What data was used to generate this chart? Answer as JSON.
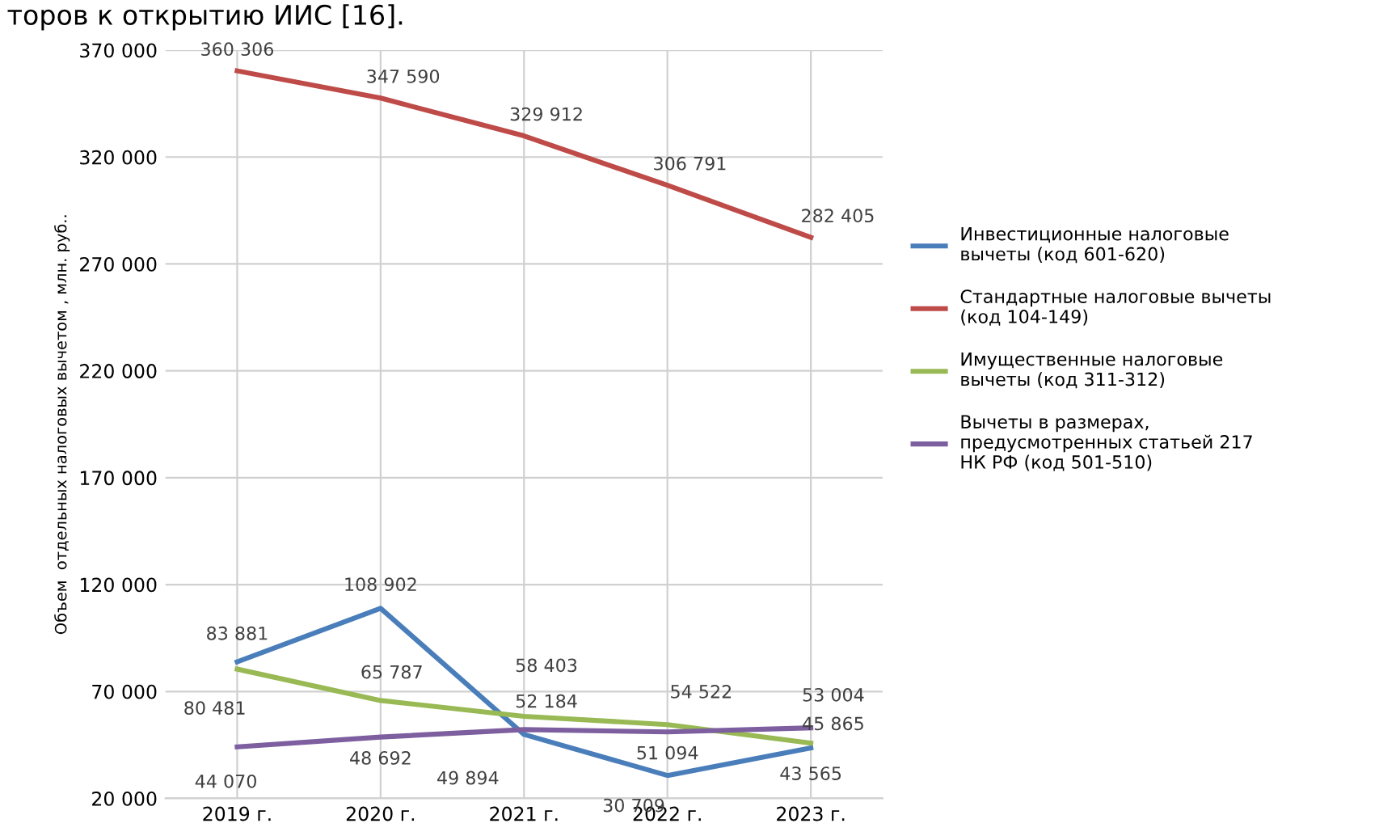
{
  "chart_data": {
    "type": "line",
    "ylabel": "Объем  отдельных налоговых вычетом , млн. руб..",
    "categories": [
      "2019 г.",
      "2020 г.",
      "2021 г.",
      "2022 г.",
      "2023 г."
    ],
    "series": [
      {
        "name": "Инвестиционные налоговые вычеты (код 601-620)",
        "color": "#4a7ebb",
        "values": [
          83881,
          108902,
          49894,
          30709,
          43565
        ]
      },
      {
        "name": "Стандартные налоговые вычеты (код 104-149)",
        "color": "#be4b48",
        "values": [
          360306,
          347590,
          329912,
          306791,
          282405
        ]
      },
      {
        "name": "Имущественные налоговые вычеты (код 311-312)",
        "color": "#98b954",
        "values": [
          80481,
          65787,
          58403,
          54522,
          45865
        ]
      },
      {
        "name": "Вычеты в размерах, предусмотренных статьей 217 НК РФ (код 501-510)",
        "color": "#7d5fa0",
        "values": [
          44070,
          48692,
          52184,
          51094,
          53004
        ]
      }
    ],
    "ylim": [
      20000,
      370000
    ],
    "yticks": [
      {
        "value": 20000,
        "label": "20 000"
      },
      {
        "value": 70000,
        "label": "70 000"
      },
      {
        "value": 120000,
        "label": "120 000"
      },
      {
        "value": 170000,
        "label": "170 000"
      },
      {
        "value": 220000,
        "label": "220 000"
      },
      {
        "value": 270000,
        "label": "270 000"
      },
      {
        "value": 320000,
        "label": "320 000"
      },
      {
        "value": 370000,
        "label": "370 000"
      }
    ],
    "grid": true,
    "legend": "right",
    "marker": "none",
    "line_style": "solid",
    "data_labels": true,
    "annotations": [
      "торов к открытию ИИС [16]."
    ]
  }
}
